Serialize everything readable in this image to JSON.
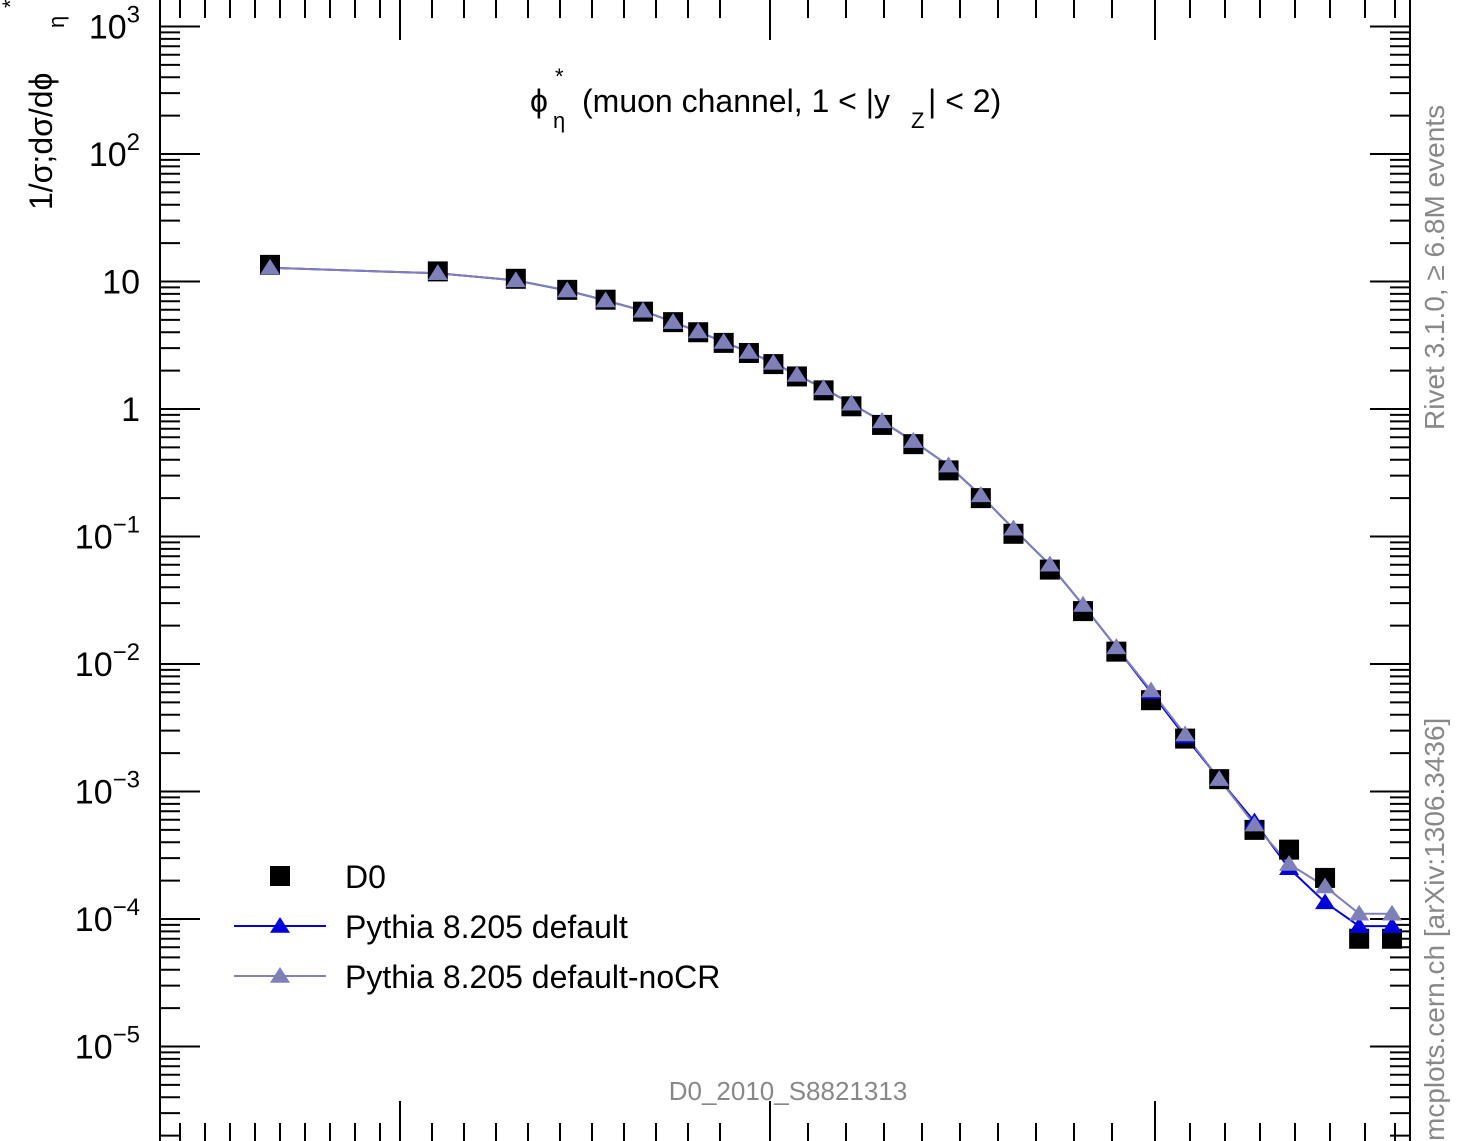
{
  "chart_data": {
    "type": "line",
    "title": "",
    "annotation_main": "ϕ",
    "annotation_sup": "*",
    "annotation_sub": "η",
    "annotation_rest": "(muon channel, 1 < |y",
    "annotation_sub2": "Z",
    "annotation_end": "| < 2)",
    "ylabel": "1/σ;dσ/dϕ",
    "ylabel_sub": "η",
    "ylabel_sup": "*",
    "xlabel": "",
    "y_scale": "log",
    "ylim": [
      2e-06,
      2000
    ],
    "xlim": [
      0.001,
      3.3
    ],
    "y_tick_labels": [
      {
        "value": 1000,
        "base": "10",
        "exp": "3"
      },
      {
        "value": 100,
        "base": "10",
        "exp": "2"
      },
      {
        "value": 10,
        "base": "10",
        "exp": ""
      },
      {
        "value": 1,
        "base": "1",
        "exp": ""
      },
      {
        "value": 0.1,
        "base": "10",
        "exp": "−1"
      },
      {
        "value": 0.01,
        "base": "10",
        "exp": "−2"
      },
      {
        "value": 0.001,
        "base": "10",
        "exp": "−3"
      },
      {
        "value": 0.0001,
        "base": "10",
        "exp": "−4"
      },
      {
        "value": 1e-05,
        "base": "10",
        "exp": "−5"
      }
    ],
    "legend_position": "bottom-left",
    "series": [
      {
        "name": "D0",
        "marker": "square",
        "color": "#000000",
        "x": [
          0.002,
          0.006,
          0.01,
          0.014,
          0.018,
          0.023,
          0.028,
          0.033,
          0.039,
          0.046,
          0.054,
          0.063,
          0.075,
          0.09,
          0.11,
          0.135,
          0.17,
          0.21,
          0.26,
          0.33,
          0.41,
          0.51,
          0.64,
          0.8,
          1.0,
          1.26,
          1.58,
          2.0,
          2.5,
          3.1
        ],
        "y": [
          13.5,
          12.0,
          10.5,
          8.6,
          7.2,
          5.8,
          4.8,
          4.0,
          3.3,
          2.75,
          2.25,
          1.8,
          1.4,
          1.05,
          0.75,
          0.53,
          0.33,
          0.2,
          0.105,
          0.055,
          0.026,
          0.0125,
          0.0052,
          0.0026,
          0.00125,
          0.0005,
          0.00035,
          0.00021,
          7e-05,
          7e-05
        ]
      },
      {
        "name": "Pythia 8.205 default",
        "marker": "triangle",
        "color": "#0000dd",
        "x": [
          0.002,
          0.006,
          0.01,
          0.014,
          0.018,
          0.023,
          0.028,
          0.033,
          0.039,
          0.046,
          0.054,
          0.063,
          0.075,
          0.09,
          0.11,
          0.135,
          0.17,
          0.21,
          0.26,
          0.33,
          0.41,
          0.51,
          0.64,
          0.8,
          1.0,
          1.26,
          1.58,
          2.0,
          2.5,
          3.1
        ],
        "y": [
          12.8,
          11.6,
          10.2,
          8.5,
          7.1,
          5.9,
          4.8,
          4.05,
          3.35,
          2.8,
          2.3,
          1.85,
          1.45,
          1.1,
          0.8,
          0.56,
          0.36,
          0.21,
          0.115,
          0.06,
          0.029,
          0.0135,
          0.006,
          0.0027,
          0.00125,
          0.00058,
          0.00025,
          0.000135,
          8.8e-05,
          8.8e-05
        ]
      },
      {
        "name": "Pythia 8.205 default-noCR",
        "marker": "triangle",
        "color": "#8080b8",
        "x": [
          0.002,
          0.006,
          0.01,
          0.014,
          0.018,
          0.023,
          0.028,
          0.033,
          0.039,
          0.046,
          0.054,
          0.063,
          0.075,
          0.09,
          0.11,
          0.135,
          0.17,
          0.21,
          0.26,
          0.33,
          0.41,
          0.51,
          0.64,
          0.8,
          1.0,
          1.26,
          1.58,
          2.0,
          2.5,
          3.1
        ],
        "y": [
          12.8,
          11.6,
          10.2,
          8.5,
          7.1,
          5.9,
          4.8,
          4.05,
          3.35,
          2.8,
          2.3,
          1.85,
          1.45,
          1.1,
          0.8,
          0.56,
          0.36,
          0.21,
          0.115,
          0.06,
          0.029,
          0.0135,
          0.0062,
          0.0028,
          0.00125,
          0.00055,
          0.00027,
          0.00018,
          0.00011,
          0.00011
        ]
      }
    ]
  },
  "watermark_top": "Rivet 3.1.0, ≥ 6.8M events",
  "watermark_bottom": "mcplots.cern.ch [arXiv:1306.3436]",
  "analysis_id": "D0_2010_S8821313"
}
